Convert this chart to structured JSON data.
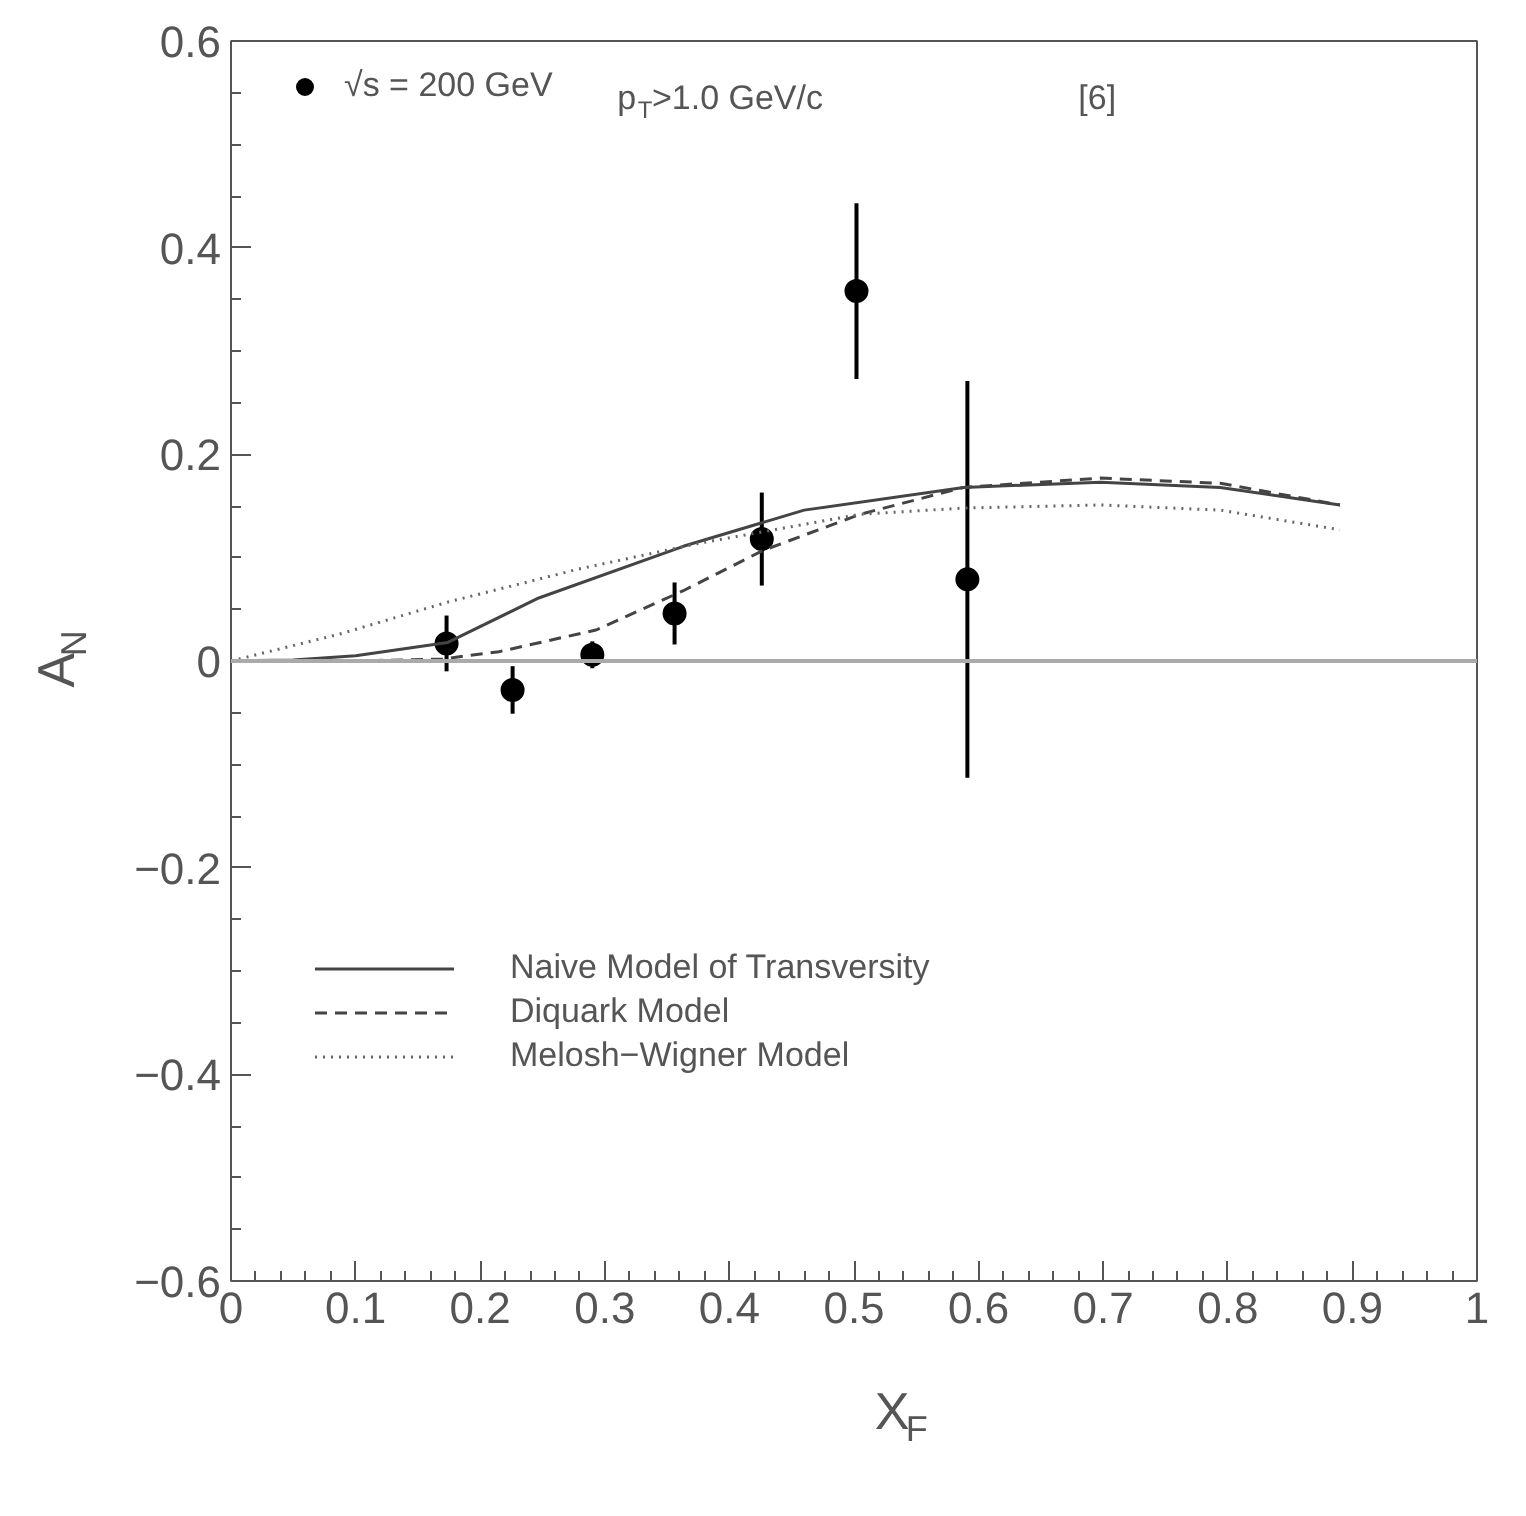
{
  "chart_data": {
    "type": "scatter",
    "xlabel": "X$_{F}$",
    "ylabel": "A$_{N}$",
    "annotations": [
      "p$_{T}$>1.0  GeV/c",
      "[6]"
    ],
    "xlim": [
      0,
      1
    ],
    "ylim": [
      -0.6,
      0.6
    ],
    "xticks": [
      0,
      0.1,
      0.2,
      0.3,
      0.4,
      0.5,
      0.6,
      0.7,
      0.8,
      0.9,
      1
    ],
    "yticks": [
      {
        "value": -0.6,
        "label": "−0.6"
      },
      {
        "value": -0.4,
        "label": "−0.4"
      },
      {
        "value": -0.2,
        "label": "−0.2"
      },
      0,
      0.2,
      0.4,
      0.6
    ],
    "grid": false,
    "legend": "left",
    "ref_lines": [
      {
        "axis": "y",
        "value": 0,
        "color": "#aaaaaa"
      }
    ],
    "series": [
      {
        "name": "√s = 200 GeV",
        "color": "#000000",
        "marker": "circle",
        "x": [
          0.173,
          0.226,
          0.29,
          0.356,
          0.426,
          0.502,
          0.591
        ],
        "values": [
          0.017,
          -0.028,
          0.006,
          0.046,
          0.118,
          0.358,
          0.079
        ],
        "errors": [
          0.027,
          0.023,
          0.013,
          0.03,
          0.045,
          0.085,
          0.192
        ]
      },
      {
        "name": "Naive Model of Transversity",
        "type": "line",
        "color": "#444444",
        "line_style": "solid",
        "x": [
          0,
          0.05,
          0.1,
          0.174,
          0.247,
          0.363,
          0.46,
          0.588,
          0.698,
          0.794,
          0.89
        ],
        "values": [
          0,
          0.001,
          0.005,
          0.018,
          0.061,
          0.111,
          0.146,
          0.168,
          0.173,
          0.168,
          0.151
        ]
      },
      {
        "name": "Diquark Model",
        "type": "line",
        "color": "#444444",
        "line_style": "dashed",
        "x": [
          0,
          0.1,
          0.17,
          0.215,
          0.293,
          0.363,
          0.427,
          0.505,
          0.588,
          0.698,
          0.794,
          0.89
        ],
        "values": [
          0,
          0,
          0.002,
          0.009,
          0.03,
          0.068,
          0.107,
          0.142,
          0.168,
          0.177,
          0.172,
          0.151
        ]
      },
      {
        "name": "Melosh−Wigner Model",
        "type": "line",
        "color": "#666666",
        "line_style": "dotted",
        "x": [
          0,
          0.087,
          0.174,
          0.279,
          0.376,
          0.505,
          0.588,
          0.698,
          0.794,
          0.89
        ],
        "values": [
          0,
          0.026,
          0.057,
          0.089,
          0.114,
          0.142,
          0.148,
          0.151,
          0.146,
          0.127
        ]
      }
    ]
  }
}
